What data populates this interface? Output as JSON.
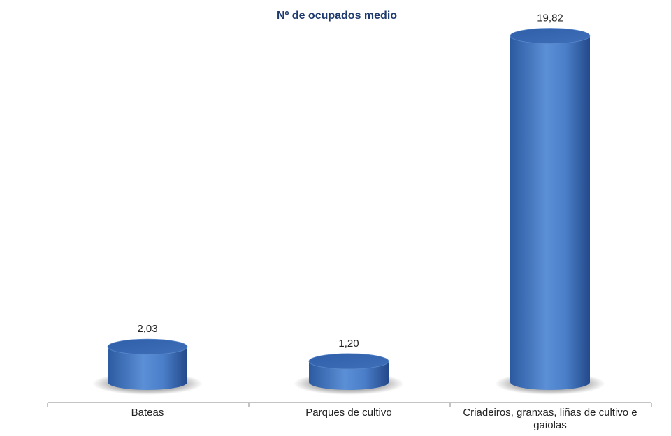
{
  "chart_data": {
    "type": "bar",
    "title": "Nº de ocupados medio",
    "categories": [
      "Bateas",
      "Parques de cultivo",
      "Criadeiros, granxas, liñas de cultivo e gaiolas"
    ],
    "values": [
      2.03,
      1.2,
      19.82
    ],
    "value_labels": [
      "2,03",
      "1,20",
      "19,82"
    ],
    "xlabel": "",
    "ylabel": "",
    "ylim": [
      0,
      20
    ],
    "grid": false,
    "legend": "none",
    "bar_style": "3d-cylinder",
    "bar_color": "#4a7ec8"
  }
}
